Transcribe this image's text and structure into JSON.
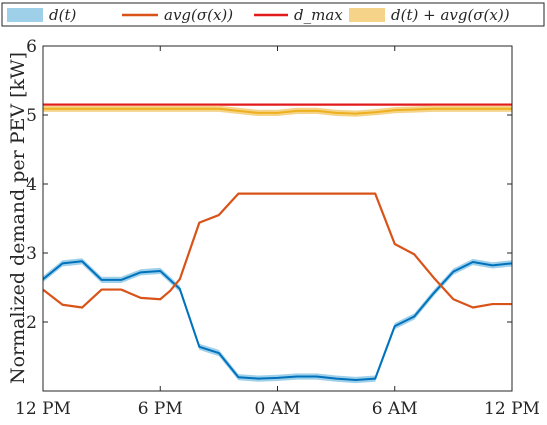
{
  "chart_data": {
    "type": "line",
    "ylabel": "Normalized demand per PEV [kW]",
    "xlabel": "",
    "ylim": [
      1,
      6
    ],
    "yticks": [
      2,
      3,
      4,
      5,
      6
    ],
    "xticks": [
      {
        "label": "12 PM",
        "x": 0
      },
      {
        "label": "6 PM",
        "x": 6
      },
      {
        "label": "0 AM",
        "x": 12
      },
      {
        "label": "6 AM",
        "x": 18
      },
      {
        "label": "12 PM",
        "x": 24
      }
    ],
    "xlim": [
      0,
      24
    ],
    "grid": false,
    "legend_position": "top",
    "series": [
      {
        "name": "d(t)",
        "kind": "band",
        "color": "#0072BD",
        "band_color": "#9FD0EA",
        "x": [
          0,
          1,
          2,
          3,
          4,
          5,
          6,
          7,
          8,
          9,
          10,
          11,
          12,
          13,
          14,
          15,
          16,
          17,
          18,
          19,
          20,
          21,
          22,
          23,
          24
        ],
        "values": [
          2.62,
          2.85,
          2.88,
          2.61,
          2.61,
          2.72,
          2.74,
          2.48,
          1.64,
          1.55,
          1.2,
          1.18,
          1.19,
          1.21,
          1.21,
          1.18,
          1.16,
          1.18,
          1.94,
          2.08,
          2.42,
          2.73,
          2.87,
          2.82,
          2.85
        ]
      },
      {
        "name": "avg(σ(x))",
        "kind": "line",
        "color": "#D95319",
        "x": [
          0,
          1,
          2,
          3,
          4,
          5,
          6,
          6.5,
          7,
          8,
          9,
          10,
          11,
          12,
          13,
          14,
          15,
          16,
          17,
          18,
          19,
          20,
          21,
          22,
          23,
          24
        ],
        "values": [
          2.47,
          2.25,
          2.21,
          2.47,
          2.47,
          2.35,
          2.33,
          2.45,
          2.62,
          3.44,
          3.55,
          3.86,
          3.86,
          3.86,
          3.86,
          3.86,
          3.86,
          3.86,
          3.86,
          3.13,
          2.98,
          2.64,
          2.33,
          2.21,
          2.26,
          2.26
        ]
      },
      {
        "name": "d_max",
        "kind": "line",
        "color": "#E31A1C",
        "x": [
          0,
          24
        ],
        "values": [
          5.15,
          5.15
        ]
      },
      {
        "name": "d(t) + avg(σ(x))",
        "kind": "band",
        "color": "#EDB120",
        "band_color": "#F5D48A",
        "x": [
          0,
          1,
          2,
          3,
          4,
          5,
          6,
          7,
          8,
          9,
          10,
          11,
          12,
          13,
          14,
          15,
          16,
          17,
          18,
          19,
          20,
          21,
          22,
          23,
          24
        ],
        "values": [
          5.09,
          5.09,
          5.09,
          5.09,
          5.09,
          5.09,
          5.09,
          5.09,
          5.09,
          5.09,
          5.06,
          5.03,
          5.03,
          5.06,
          5.06,
          5.03,
          5.02,
          5.04,
          5.07,
          5.08,
          5.09,
          5.09,
          5.09,
          5.09,
          5.09
        ]
      }
    ]
  },
  "legend": {
    "entries": [
      {
        "text": "d(t)",
        "swatch": "band",
        "color": "#9FD0EA"
      },
      {
        "text": "avg(σ(x))",
        "swatch": "line",
        "color": "#D95319"
      },
      {
        "text": "d_max",
        "swatch": "line",
        "color": "#E31A1C"
      },
      {
        "text": "d(t) + avg(σ(x))",
        "swatch": "band",
        "color": "#F5D48A"
      }
    ]
  }
}
